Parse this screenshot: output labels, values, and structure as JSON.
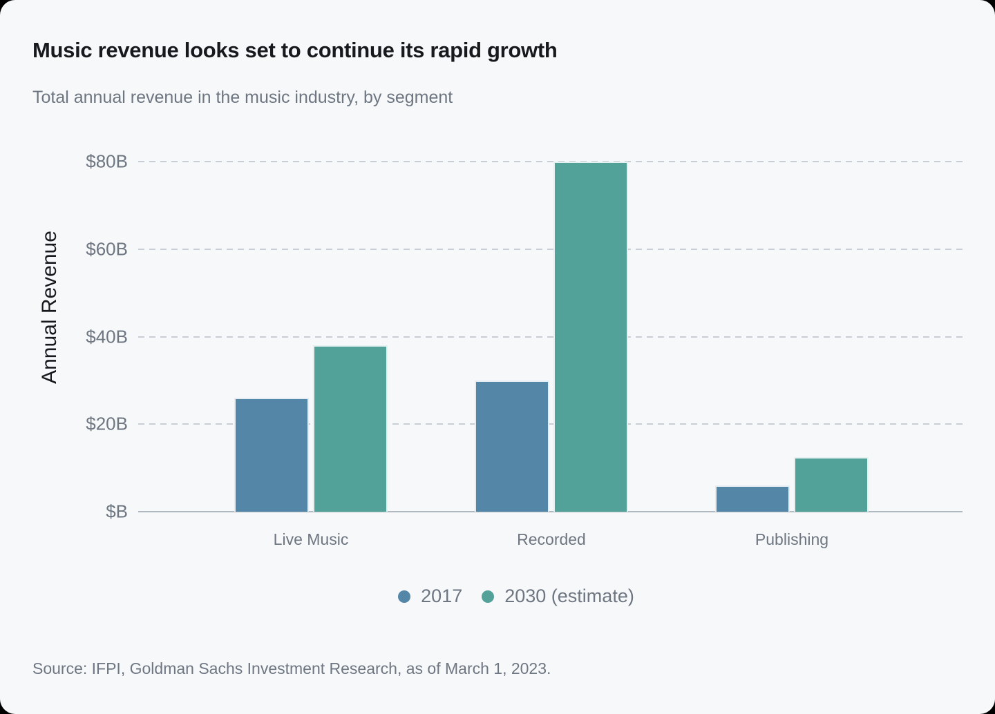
{
  "title": "Music revenue looks set to continue its rapid growth",
  "subtitle": "Total annual revenue in the music industry, by segment",
  "source": "Source: IFPI, Goldman Sachs Investment Research, as of March 1, 2023.",
  "colors": {
    "background": "#f7f8fa",
    "series_2017": "#5486a8",
    "series_2030": "#52a29a",
    "grid": "#c9ced6",
    "axis": "#b2b8bf",
    "text_dark": "#17191c",
    "text_gray": "#6e7681"
  },
  "chart_data": {
    "type": "bar",
    "title": "Music revenue looks set to continue its rapid growth",
    "subtitle": "Total annual revenue in the music industry, by segment",
    "categories": [
      "Live Music",
      "Recorded",
      "Publishing"
    ],
    "series": [
      {
        "name": "2017",
        "color": "#5486a8",
        "values": [
          26,
          30,
          6
        ]
      },
      {
        "name": "2030 (estimate)",
        "color": "#52a29a",
        "values": [
          38,
          80,
          12.5
        ]
      }
    ],
    "xlabel": "",
    "ylabel": "Annual Revenue",
    "yticks": [
      {
        "value": 0,
        "label": "$B"
      },
      {
        "value": 20,
        "label": "$20B"
      },
      {
        "value": 40,
        "label": "$40B"
      },
      {
        "value": 60,
        "label": "$60B"
      },
      {
        "value": 80,
        "label": "$80B"
      }
    ],
    "ylim": [
      0,
      84
    ],
    "grid": "horizontal-dashed",
    "legend_position": "bottom"
  }
}
